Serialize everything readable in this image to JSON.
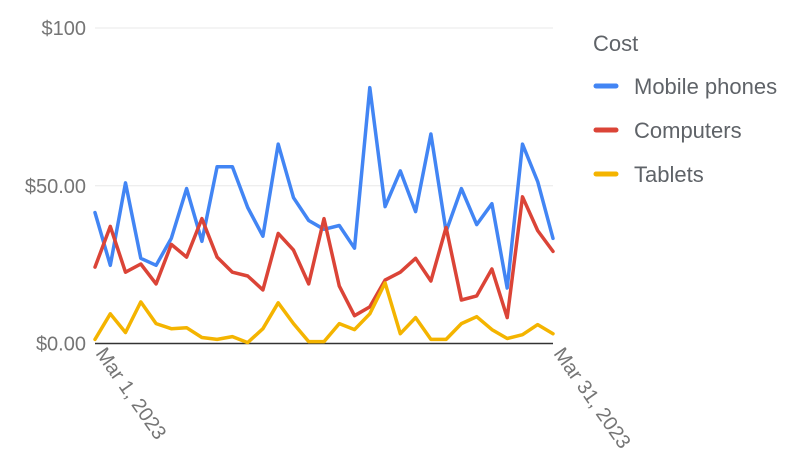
{
  "chart_data": {
    "type": "line",
    "title": "",
    "xlabel": "",
    "ylabel": "",
    "x_tick_labels": [
      "Mar 1, 2023",
      "Mar 31, 2023"
    ],
    "y_tick_labels": [
      "$0.00",
      "$50.00",
      "$100"
    ],
    "y_ticks": [
      0,
      50,
      100
    ],
    "ylim": [
      0,
      100
    ],
    "x": [
      "2023-03-01",
      "2023-03-02",
      "2023-03-03",
      "2023-03-04",
      "2023-03-05",
      "2023-03-06",
      "2023-03-07",
      "2023-03-08",
      "2023-03-09",
      "2023-03-10",
      "2023-03-11",
      "2023-03-12",
      "2023-03-13",
      "2023-03-14",
      "2023-03-15",
      "2023-03-16",
      "2023-03-17",
      "2023-03-18",
      "2023-03-19",
      "2023-03-20",
      "2023-03-21",
      "2023-03-22",
      "2023-03-23",
      "2023-03-24",
      "2023-03-25",
      "2023-03-26",
      "2023-03-27",
      "2023-03-28",
      "2023-03-29",
      "2023-03-30",
      "2023-03-31"
    ],
    "grid": true,
    "legend": {
      "title": "Cost",
      "position": "right"
    },
    "series": [
      {
        "name": "Mobile phones",
        "color": "#4285f4",
        "values": [
          41.5,
          24.8,
          50.9,
          27.0,
          24.8,
          33.3,
          49.1,
          32.4,
          56.0,
          56.0,
          43.1,
          34.0,
          63.2,
          46.2,
          39.0,
          36.2,
          37.4,
          30.2,
          81.1,
          43.4,
          54.7,
          41.8,
          66.4,
          35.5,
          49.1,
          37.7,
          44.3,
          17.6,
          63.2,
          51.3,
          33.3
        ]
      },
      {
        "name": "Computers",
        "color": "#db4437",
        "values": [
          24.2,
          37.1,
          22.6,
          25.2,
          18.9,
          31.4,
          27.4,
          39.6,
          27.4,
          22.6,
          21.4,
          17.0,
          34.9,
          29.6,
          18.9,
          39.6,
          18.2,
          8.8,
          11.6,
          20.1,
          22.6,
          27.0,
          19.8,
          36.8,
          13.8,
          15.1,
          23.6,
          8.2,
          46.5,
          35.8,
          29.2
        ]
      },
      {
        "name": "Tablets",
        "color": "#f4b400",
        "values": [
          1.3,
          9.4,
          3.5,
          13.2,
          6.3,
          4.7,
          5.0,
          1.9,
          1.3,
          2.2,
          0.3,
          4.7,
          12.9,
          6.3,
          0.6,
          0.6,
          6.3,
          4.4,
          9.4,
          19.2,
          3.1,
          8.2,
          1.3,
          1.3,
          6.3,
          8.5,
          4.4,
          1.6,
          2.8,
          6.0,
          3.1
        ]
      }
    ]
  }
}
